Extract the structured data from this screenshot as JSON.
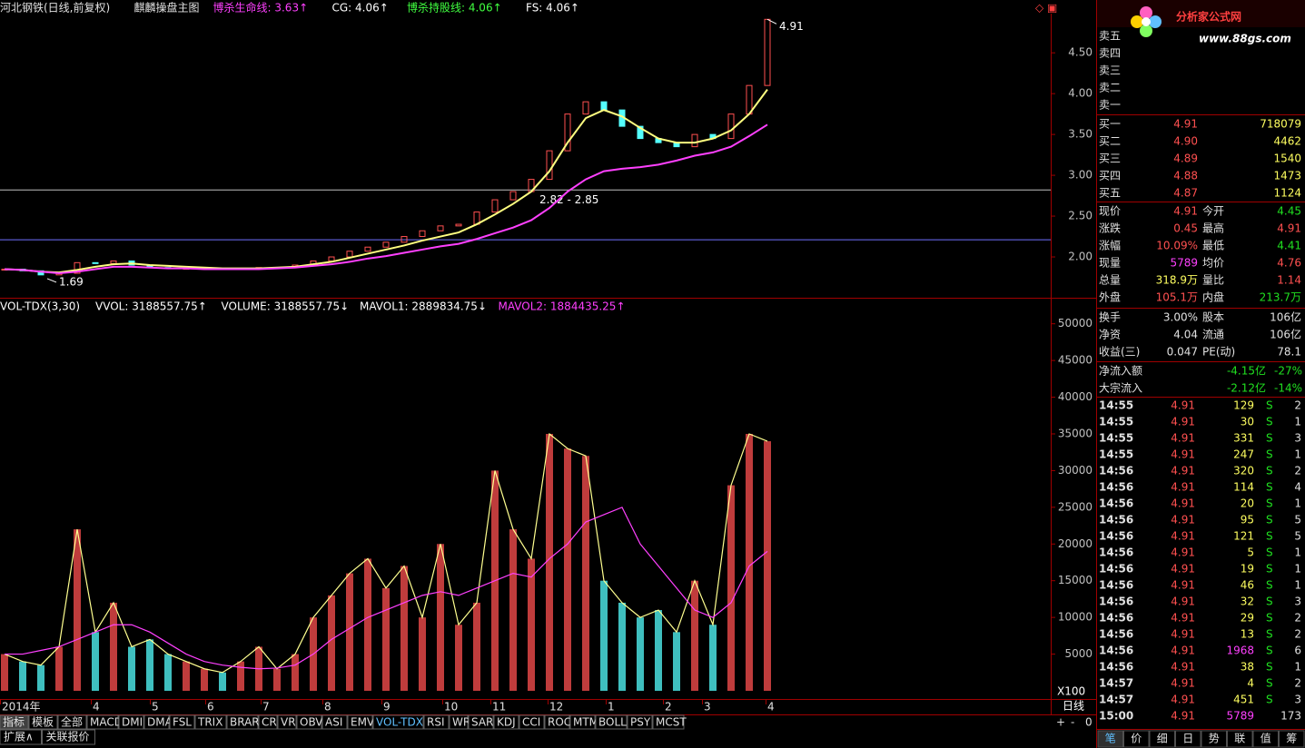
{
  "header": {
    "title": "河北钢铁(日线,前复权)",
    "indicator": "麒麟操盘主图",
    "legend": [
      {
        "text": "博杀生命线: 3.63↑",
        "color": "#ff40ff"
      },
      {
        "text": "CG: 4.06↑",
        "color": "#ffffff"
      },
      {
        "text": "博杀持股线: 4.06↑",
        "color": "#40ff40"
      },
      {
        "text": "FS: 4.06↑",
        "color": "#ffffff"
      }
    ]
  },
  "price_chart": {
    "type": "candlestick-line",
    "closes": [
      1.85,
      1.83,
      1.78,
      1.8,
      1.93,
      1.92,
      1.95,
      1.9,
      1.87,
      1.86,
      1.86,
      1.86,
      1.85,
      1.86,
      1.87,
      1.87,
      1.9,
      1.95,
      2.0,
      2.07,
      2.12,
      2.18,
      2.25,
      2.32,
      2.38,
      2.4,
      2.55,
      2.7,
      2.8,
      2.95,
      3.3,
      3.75,
      3.9,
      3.8,
      3.6,
      3.45,
      3.4,
      3.35,
      3.5,
      3.45,
      3.75,
      4.1,
      4.91
    ],
    "series": [
      {
        "name": "CG",
        "color": "#ffff80",
        "values": [
          1.85,
          1.84,
          1.82,
          1.81,
          1.84,
          1.88,
          1.91,
          1.92,
          1.9,
          1.89,
          1.88,
          1.87,
          1.86,
          1.86,
          1.86,
          1.87,
          1.88,
          1.91,
          1.94,
          1.99,
          2.04,
          2.09,
          2.14,
          2.2,
          2.25,
          2.3,
          2.4,
          2.52,
          2.65,
          2.8,
          3.05,
          3.4,
          3.7,
          3.8,
          3.72,
          3.58,
          3.45,
          3.4,
          3.4,
          3.45,
          3.55,
          3.75,
          4.05
        ]
      },
      {
        "name": "博杀生命线",
        "color": "#ff40ff",
        "values": [
          1.85,
          1.84,
          1.82,
          1.8,
          1.82,
          1.85,
          1.88,
          1.88,
          1.87,
          1.86,
          1.86,
          1.85,
          1.85,
          1.85,
          1.85,
          1.86,
          1.87,
          1.89,
          1.91,
          1.94,
          1.98,
          2.01,
          2.05,
          2.09,
          2.13,
          2.16,
          2.22,
          2.29,
          2.36,
          2.45,
          2.6,
          2.8,
          2.95,
          3.05,
          3.08,
          3.1,
          3.13,
          3.18,
          3.24,
          3.28,
          3.35,
          3.48,
          3.62
        ]
      }
    ],
    "up_color": "#ff5050",
    "down_color": "#54ffff",
    "ylim": [
      1.5,
      4.98
    ],
    "yticks": [
      {
        "value": 2,
        "label": "2.00"
      },
      {
        "value": 2.5,
        "label": "2.50"
      },
      {
        "value": 3,
        "label": "3.00"
      },
      {
        "value": 3.5,
        "label": "3.50"
      },
      {
        "value": 4,
        "label": "4.00"
      },
      {
        "value": 4.5,
        "label": "4.50"
      }
    ],
    "hlines": [
      {
        "value": 2.82,
        "color": "#c0c0c0"
      },
      {
        "value": 2.21,
        "color": "#7070ff"
      }
    ],
    "range_label": "2.82 - 2.85",
    "high_label": {
      "value": 4.91,
      "label": "4.91"
    },
    "low_label": {
      "value": 1.69,
      "label": "1.69"
    }
  },
  "volume_chart": {
    "type": "bar-line",
    "legend": [
      {
        "text": "VOL-TDX(3,30)",
        "color": "#ffffff"
      },
      {
        "text": "VVOL: 3188557.75↑",
        "color": "#ffffff"
      },
      {
        "text": "VOLUME: 3188557.75↓",
        "color": "#ffffff"
      },
      {
        "text": "MAVOL1: 2889834.75↓",
        "color": "#ffffff"
      },
      {
        "text": "MAVOL2: 1884435.25↑",
        "color": "#ff40ff"
      }
    ],
    "values": [
      5000,
      4000,
      3500,
      6000,
      22000,
      8000,
      12000,
      6000,
      7000,
      5000,
      4000,
      3000,
      2500,
      4000,
      6000,
      3000,
      5000,
      10000,
      13000,
      16000,
      18000,
      14000,
      17000,
      10000,
      20000,
      9000,
      12000,
      30000,
      22000,
      18000,
      35000,
      33000,
      32000,
      15000,
      12000,
      10000,
      11000,
      8000,
      15000,
      9000,
      28000,
      35000,
      34000
    ],
    "ma": {
      "name": "MAVOL2",
      "color": "#ff40ff",
      "values": [
        5000,
        5000,
        5500,
        6000,
        7000,
        8000,
        9000,
        9000,
        8000,
        6500,
        5000,
        4000,
        3500,
        3200,
        3000,
        3100,
        3500,
        5000,
        7000,
        8500,
        10000,
        11000,
        12000,
        13000,
        13500,
        13000,
        14000,
        15000,
        16000,
        15500,
        18000,
        20000,
        23000,
        24000,
        25000,
        20000,
        17000,
        14000,
        11000,
        10000,
        12000,
        17000,
        19000
      ]
    },
    "line_color": "#ffff90",
    "ylim": [
      0,
      53300
    ],
    "yticks": [
      5000,
      10000,
      15000,
      20000,
      25000,
      30000,
      35000,
      40000,
      45000,
      50000
    ],
    "unit": "X100"
  },
  "date_axis": {
    "labels": [
      "2014年",
      "4",
      "5",
      "6",
      "7",
      "8",
      "9",
      "10",
      "11",
      "12",
      "1",
      "2",
      "3",
      "4"
    ],
    "period": "日线"
  },
  "tabs": [
    "指标",
    "模板",
    "全部",
    "MACD",
    "DMI",
    "DMA",
    "FSL",
    "TRIX",
    "BRAR",
    "CR",
    "VR",
    "OBV",
    "ASI",
    "EMV",
    "VOL-TDX",
    "RSI",
    "WR",
    "SAR",
    "KDJ",
    "CCI",
    "ROC",
    "MTM",
    "BOLL",
    "PSY",
    "MCST"
  ],
  "zoom_buttons": [
    "+",
    "-",
    "0"
  ],
  "bottom_tabs": [
    "扩展∧",
    "关联报价"
  ],
  "logo": {
    "title": "分析家公式网",
    "url": "www.88gs.com"
  },
  "asks": [
    "卖五",
    "卖四",
    "卖三",
    "卖二",
    "卖一"
  ],
  "bids": [
    [
      "买一",
      "4.91",
      "718079"
    ],
    [
      "买二",
      "4.90",
      "4462"
    ],
    [
      "买三",
      "4.89",
      "1540"
    ],
    [
      "买四",
      "4.88",
      "1473"
    ],
    [
      "买五",
      "4.87",
      "1124"
    ]
  ],
  "stats": [
    [
      "现价",
      "4.91",
      "今开",
      "4.45"
    ],
    [
      "涨跌",
      "0.45",
      "最高",
      "4.91"
    ],
    [
      "涨幅",
      "10.09%",
      "最低",
      "4.41"
    ],
    [
      "现量",
      "5789",
      "均价",
      "4.76"
    ],
    [
      "总量",
      "318.9万",
      "量比",
      "1.14"
    ],
    [
      "外盘",
      "105.1万",
      "内盘",
      "213.7万"
    ]
  ],
  "fundamentals": [
    [
      "换手",
      "3.00%",
      "股本",
      "106亿"
    ],
    [
      "净资",
      "4.04",
      "流通",
      "106亿"
    ],
    [
      "收益(三)",
      "0.047",
      "PE(动)",
      "78.1"
    ]
  ],
  "flows": [
    [
      "净流入额",
      "-4.15亿",
      "-27%"
    ],
    [
      "大宗流入",
      "-2.12亿",
      "-14%"
    ]
  ],
  "trades": [
    [
      "14:55",
      "4.91",
      "129",
      "S",
      "2"
    ],
    [
      "14:55",
      "4.91",
      "30",
      "S",
      "1"
    ],
    [
      "14:55",
      "4.91",
      "331",
      "S",
      "3"
    ],
    [
      "14:55",
      "4.91",
      "247",
      "S",
      "1"
    ],
    [
      "14:56",
      "4.91",
      "320",
      "S",
      "2"
    ],
    [
      "14:56",
      "4.91",
      "114",
      "S",
      "4"
    ],
    [
      "14:56",
      "4.91",
      "20",
      "S",
      "1"
    ],
    [
      "14:56",
      "4.91",
      "95",
      "S",
      "5"
    ],
    [
      "14:56",
      "4.91",
      "121",
      "S",
      "5"
    ],
    [
      "14:56",
      "4.91",
      "5",
      "S",
      "1"
    ],
    [
      "14:56",
      "4.91",
      "19",
      "S",
      "1"
    ],
    [
      "14:56",
      "4.91",
      "46",
      "S",
      "1"
    ],
    [
      "14:56",
      "4.91",
      "32",
      "S",
      "3"
    ],
    [
      "14:56",
      "4.91",
      "29",
      "S",
      "2"
    ],
    [
      "14:56",
      "4.91",
      "13",
      "S",
      "2"
    ],
    [
      "14:56",
      "4.91",
      "1968",
      "S",
      "6"
    ],
    [
      "14:56",
      "4.91",
      "38",
      "S",
      "1"
    ],
    [
      "14:57",
      "4.91",
      "4",
      "S",
      "2"
    ],
    [
      "14:57",
      "4.91",
      "451",
      "S",
      "3"
    ],
    [
      "15:00",
      "4.91",
      "5789",
      "173"
    ]
  ],
  "panel_tabs": [
    "笔",
    "价",
    "细",
    "日",
    "势",
    "联",
    "值",
    "筹"
  ]
}
